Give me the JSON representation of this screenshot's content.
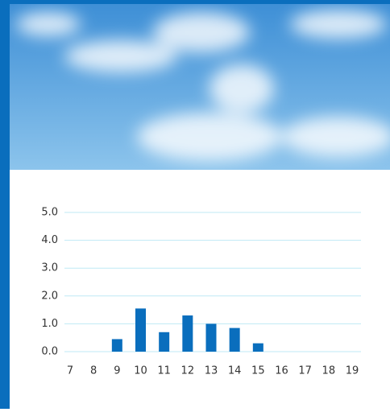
{
  "chart_data": {
    "type": "bar",
    "categories": [
      "7",
      "8",
      "9",
      "10",
      "11",
      "12",
      "13",
      "14",
      "15",
      "16",
      "17",
      "18",
      "19"
    ],
    "values": [
      0,
      0,
      0.45,
      1.55,
      0.7,
      1.3,
      1.0,
      0.85,
      0.3,
      0,
      0,
      0,
      0
    ],
    "color": "#0a6ebd",
    "ylim": [
      0,
      5
    ],
    "yticks": [
      {
        "value": 0,
        "label": "0.0"
      },
      {
        "value": 1,
        "label": "1.0"
      },
      {
        "value": 2,
        "label": "2.0"
      },
      {
        "value": 3,
        "label": "3.0"
      },
      {
        "value": 4,
        "label": "4.0"
      },
      {
        "value": 5,
        "label": "5.0"
      }
    ],
    "grid": true
  }
}
